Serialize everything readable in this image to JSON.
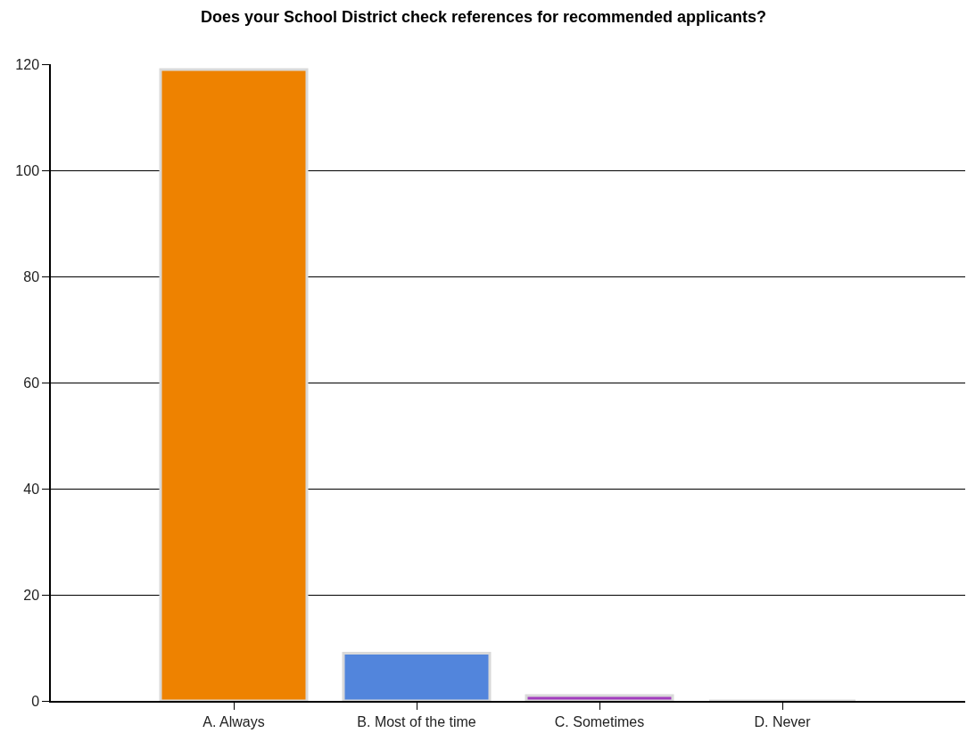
{
  "chart_data": {
    "type": "bar",
    "title": "Does your School District check references for recommended applicants?",
    "categories": [
      "A. Always",
      "B. Most of the time",
      "C. Sometimes",
      "D. Never"
    ],
    "values": [
      119,
      9,
      1,
      0
    ],
    "colors": [
      "#ee8200",
      "#5285dc",
      "#a23cbe",
      "#d9d9d9"
    ],
    "ylim": [
      0,
      120
    ],
    "yticks": [
      0,
      20,
      40,
      60,
      80,
      100,
      120
    ],
    "grid": "y"
  }
}
